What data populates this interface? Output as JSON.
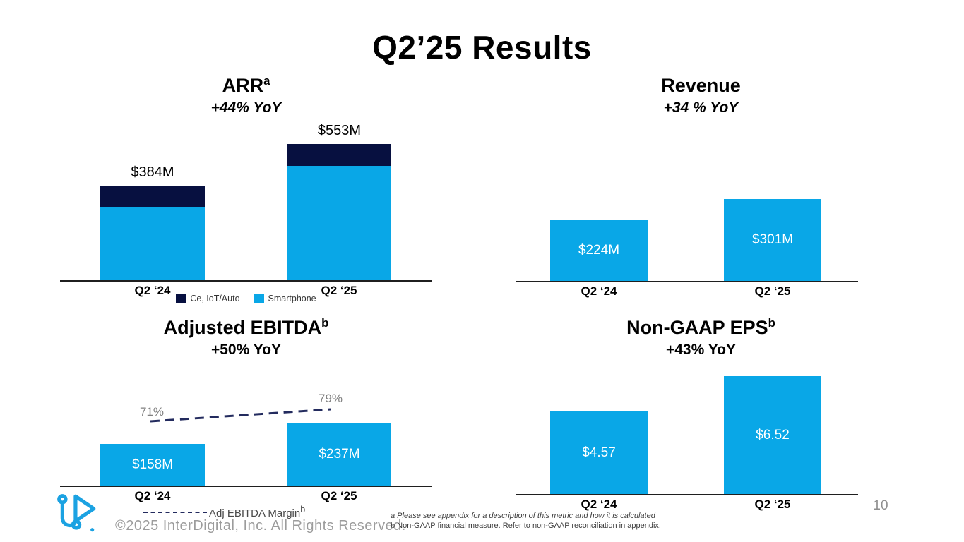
{
  "slide": {
    "title": "Q2’25 Results",
    "page_number": "10",
    "copyright": "©2025 InterDigital, Inc. All Rights Reserved.",
    "footnotes": {
      "a": "a Please see appendix for a description of this metric and how it is calculated",
      "b": "b Non-GAAP financial measure. Refer to non-GAAP reconciliation in appendix."
    },
    "logo": "interdigital-logo"
  },
  "colors": {
    "bar_blue": "#09A7E7",
    "stack_navy": "#071040",
    "margin_line_navy": "#232b5e",
    "logo_blue": "#1BA2E2",
    "pct_label_gray": "#808080"
  },
  "chart_data": [
    {
      "id": "arr",
      "type": "bar",
      "stacked": true,
      "title": "ARR",
      "title_superscript": "a",
      "subtitle": "+44% YoY",
      "categories": [
        "Q2 ‘24",
        "Q2 ‘25"
      ],
      "series": [
        {
          "name": "Ce, IoT/Auto",
          "color": "#071040",
          "values": [
            86,
            88
          ]
        },
        {
          "name": "Smartphone",
          "color": "#09A7E7",
          "values": [
            298,
            465
          ]
        }
      ],
      "totals": [
        384,
        553
      ],
      "total_labels": [
        "$384M",
        "$553M"
      ],
      "ylabel": "",
      "xlabel": "",
      "legend_position": "bottom",
      "note": "segment values estimated from bar proportions; totals labeled on chart"
    },
    {
      "id": "revenue",
      "type": "bar",
      "title": "Revenue",
      "title_superscript": "",
      "subtitle": "+34 % YoY",
      "categories": [
        "Q2 ‘24",
        "Q2 ‘25"
      ],
      "values": [
        224,
        301
      ],
      "value_labels": [
        "$224M",
        "$301M"
      ],
      "color": "#09A7E7",
      "label_position": "inside"
    },
    {
      "id": "ebitda",
      "type": "bar+line",
      "title": "Adjusted EBITDA",
      "title_superscript": "b",
      "subtitle": "+50% YoY",
      "categories": [
        "Q2 ‘24",
        "Q2 ‘25"
      ],
      "values": [
        158,
        237
      ],
      "value_labels": [
        "$158M",
        "$237M"
      ],
      "color": "#09A7E7",
      "label_position": "inside",
      "line": {
        "name": "Adj EBITDA Margin",
        "name_superscript": "b",
        "values_pct": [
          71,
          79
        ],
        "labels": [
          "71%",
          "79%"
        ],
        "style": "dashed",
        "color": "#232b5e"
      }
    },
    {
      "id": "eps",
      "type": "bar",
      "title": "Non-GAAP EPS",
      "title_superscript": "b",
      "subtitle": "+43% YoY",
      "categories": [
        "Q2 ‘24",
        "Q2 ‘25"
      ],
      "values": [
        4.57,
        6.52
      ],
      "value_labels": [
        "$4.57",
        "$6.52"
      ],
      "color": "#09A7E7",
      "label_position": "inside"
    }
  ]
}
